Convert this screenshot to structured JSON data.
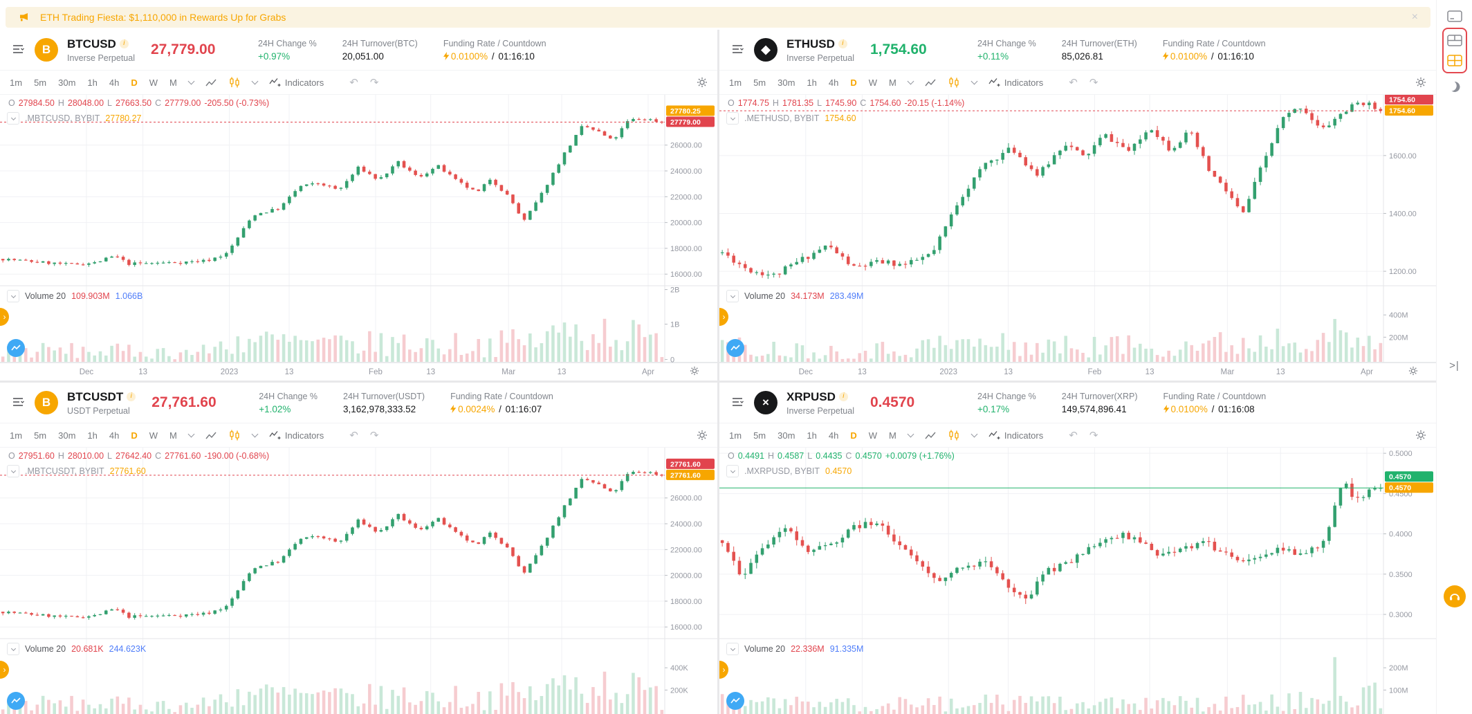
{
  "banner": {
    "text": "ETH Trading Fiesta: $1,110,000 in Rewards Up for Grabs",
    "close_glyph": "×"
  },
  "toolbar": {
    "timeframes": [
      "1m",
      "5m",
      "30m",
      "1h",
      "4h",
      "D",
      "W",
      "M"
    ],
    "active_index": 5,
    "indicators_label": "Indicators"
  },
  "ohlc_keys": {
    "o": "O",
    "h": "H",
    "l": "L",
    "c": "C"
  },
  "icons": {
    "undo": "↶",
    "redo": "↷",
    "collapse_right": ">|",
    "tab_arrow": "›"
  },
  "info_glyph": "i",
  "colors": {
    "red": "#e1444d",
    "green": "#20b26c",
    "orange": "#f7a600",
    "blue": "#4f7df9",
    "candle_up": "#33a06f",
    "candle_down": "#e4514f",
    "vol_up": "#c9e8d8",
    "vol_down": "#f6ccd0",
    "axis_text": "#9598a1",
    "grid": "#f0f1f4"
  },
  "charts": [
    {
      "symbol": "BTCUSD",
      "contract_type": "Inverse Perpetual",
      "coin_glyph": "B",
      "coin_bg": "#f7a600",
      "price": "27,779.00",
      "price_color": "red",
      "stats": {
        "change_label": "24H Change %",
        "change_value": "+0.97%",
        "turnover_label": "24H Turnover(BTC)",
        "turnover_value": "20,051.00",
        "funding_label": "Funding Rate / Countdown",
        "funding_value": "0.0100%",
        "countdown": "01:16:10"
      },
      "ohlc": {
        "o": "27984.50",
        "h": "28048.00",
        "l": "27663.50",
        "c": "27779.00",
        "change": "-205.50 (-0.73%)",
        "color": "red"
      },
      "series_symbol": ".MBTCUSD, BYBIT",
      "series_value": "27780.27",
      "volume": {
        "label": "Volume 20",
        "v1": "109.903M",
        "v2": "1.066B"
      },
      "price_axis": {
        "min": 15100,
        "max": 29900,
        "ticks": [
          {
            "v": 26000,
            "t": "26000.00"
          },
          {
            "v": 24000,
            "t": "24000.00"
          },
          {
            "v": 22000,
            "t": "22000.00"
          },
          {
            "v": 20000,
            "t": "20000.00"
          },
          {
            "v": 18000,
            "t": "18000.00"
          },
          {
            "v": 16000,
            "t": "16000.00"
          }
        ]
      },
      "volume_axis": [
        {
          "t": "2B",
          "f": 0.95
        },
        {
          "t": "1B",
          "f": 0.5
        },
        {
          "t": "0",
          "f": 0.04
        }
      ],
      "current_line": {
        "price": 27779,
        "color": "red",
        "dash": true
      },
      "tags": [
        {
          "text": "27780.25",
          "color": "orange"
        },
        {
          "text": "27779.00",
          "color": "red"
        }
      ],
      "time_ticks": [
        0.13,
        0.215,
        0.345,
        0.435,
        0.565,
        0.648,
        0.765,
        0.845,
        0.975
      ],
      "time_labels": [
        "Dec",
        "13",
        "2023",
        "13",
        "Feb",
        "13",
        "Mar",
        "13",
        "Apr"
      ],
      "series": {
        "seed": 7,
        "count": 116,
        "vol": 260,
        "wick": 170,
        "anchors": [
          [
            0,
            17180
          ],
          [
            0.05,
            16950
          ],
          [
            0.1,
            16740
          ],
          [
            0.14,
            16880
          ],
          [
            0.17,
            17420
          ],
          [
            0.19,
            16800
          ],
          [
            0.23,
            16860
          ],
          [
            0.27,
            16920
          ],
          [
            0.31,
            17050
          ],
          [
            0.34,
            17600
          ],
          [
            0.38,
            20600
          ],
          [
            0.42,
            21100
          ],
          [
            0.45,
            22800
          ],
          [
            0.48,
            23050
          ],
          [
            0.51,
            22500
          ],
          [
            0.54,
            24280
          ],
          [
            0.57,
            23280
          ],
          [
            0.6,
            24650
          ],
          [
            0.63,
            23480
          ],
          [
            0.66,
            24380
          ],
          [
            0.69,
            23150
          ],
          [
            0.72,
            22280
          ],
          [
            0.74,
            23420
          ],
          [
            0.77,
            21850
          ],
          [
            0.79,
            20050
          ],
          [
            0.815,
            22000
          ],
          [
            0.85,
            25200
          ],
          [
            0.88,
            27500
          ],
          [
            0.905,
            27000
          ],
          [
            0.925,
            26300
          ],
          [
            0.95,
            27950
          ],
          [
            0.975,
            28050
          ],
          [
            1,
            27780
          ]
        ],
        "vol_profile": [
          [
            0,
            0.35
          ],
          [
            0.3,
            0.28
          ],
          [
            0.36,
            0.65
          ],
          [
            0.5,
            0.5
          ],
          [
            0.62,
            0.55
          ],
          [
            0.72,
            0.5
          ],
          [
            0.8,
            0.6
          ],
          [
            0.88,
            1
          ],
          [
            0.94,
            0.85
          ],
          [
            1,
            0.5
          ]
        ]
      }
    },
    {
      "symbol": "ETHUSD",
      "contract_type": "Inverse Perpetual",
      "coin_glyph": "◆",
      "coin_bg": "#17181a",
      "price": "1,754.60",
      "price_color": "green",
      "stats": {
        "change_label": "24H Change %",
        "change_value": "+0.11%",
        "turnover_label": "24H Turnover(ETH)",
        "turnover_value": "85,026.81",
        "funding_label": "Funding Rate / Countdown",
        "funding_value": "0.0100%",
        "countdown": "01:16:10"
      },
      "ohlc": {
        "o": "1774.75",
        "h": "1781.35",
        "l": "1745.90",
        "c": "1754.60",
        "change": "-20.15 (-1.14%)",
        "color": "red"
      },
      "series_symbol": ".METHUSD, BYBIT",
      "series_value": "1754.60",
      "volume": {
        "label": "Volume 20",
        "v1": "34.173M",
        "v2": "283.49M"
      },
      "price_axis": {
        "min": 1150,
        "max": 1810,
        "ticks": [
          {
            "v": 1600,
            "t": "1600.00"
          },
          {
            "v": 1400,
            "t": "1400.00"
          },
          {
            "v": 1200,
            "t": "1200.00"
          }
        ]
      },
      "volume_axis": [
        {
          "t": "400M",
          "f": 0.62
        },
        {
          "t": "200M",
          "f": 0.33
        }
      ],
      "current_line": {
        "price": 1754.6,
        "color": "red",
        "dash": true
      },
      "tags": [
        {
          "text": "1754.60",
          "color": "red"
        },
        {
          "text": "1754.60",
          "color": "orange"
        }
      ],
      "time_ticks": [
        0.13,
        0.215,
        0.345,
        0.435,
        0.565,
        0.648,
        0.765,
        0.845,
        0.975
      ],
      "time_labels": [
        "Dec",
        "13",
        "2023",
        "13",
        "Feb",
        "13",
        "Mar",
        "13",
        "Apr"
      ],
      "series": {
        "seed": 11,
        "count": 116,
        "vol": 24,
        "wick": 16,
        "anchors": [
          [
            0,
            1265
          ],
          [
            0.04,
            1205
          ],
          [
            0.08,
            1185
          ],
          [
            0.12,
            1240
          ],
          [
            0.16,
            1290
          ],
          [
            0.2,
            1212
          ],
          [
            0.24,
            1232
          ],
          [
            0.28,
            1222
          ],
          [
            0.32,
            1262
          ],
          [
            0.36,
            1450
          ],
          [
            0.4,
            1572
          ],
          [
            0.44,
            1625
          ],
          [
            0.48,
            1530
          ],
          [
            0.52,
            1645
          ],
          [
            0.55,
            1592
          ],
          [
            0.58,
            1672
          ],
          [
            0.62,
            1612
          ],
          [
            0.65,
            1702
          ],
          [
            0.68,
            1622
          ],
          [
            0.71,
            1682
          ],
          [
            0.74,
            1545
          ],
          [
            0.77,
            1465
          ],
          [
            0.79,
            1392
          ],
          [
            0.82,
            1565
          ],
          [
            0.85,
            1725
          ],
          [
            0.88,
            1772
          ],
          [
            0.91,
            1685
          ],
          [
            0.94,
            1745
          ],
          [
            0.97,
            1788
          ],
          [
            1,
            1754.6
          ]
        ],
        "vol_profile": [
          [
            0,
            0.45
          ],
          [
            0.2,
            0.3
          ],
          [
            0.36,
            0.55
          ],
          [
            0.5,
            0.45
          ],
          [
            0.65,
            0.5
          ],
          [
            0.8,
            0.55
          ],
          [
            0.88,
            1
          ],
          [
            0.94,
            0.7
          ],
          [
            1,
            0.4
          ]
        ]
      }
    },
    {
      "symbol": "BTCUSDT",
      "contract_type": "USDT Perpetual",
      "coin_glyph": "B",
      "coin_bg": "#f7a600",
      "price": "27,761.60",
      "price_color": "red",
      "stats": {
        "change_label": "24H Change %",
        "change_value": "+1.02%",
        "turnover_label": "24H Turnover(USDT)",
        "turnover_value": "3,162,978,333.52",
        "funding_label": "Funding Rate / Countdown",
        "funding_value": "0.0024%",
        "countdown": "01:16:07"
      },
      "ohlc": {
        "o": "27951.60",
        "h": "28010.00",
        "l": "27642.40",
        "c": "27761.60",
        "change": "-190.00 (-0.68%)",
        "color": "red"
      },
      "series_symbol": ".MBTCUSDT, BYBIT",
      "series_value": "27761.60",
      "volume": {
        "label": "Volume 20",
        "v1": "20.681K",
        "v2": "244.623K"
      },
      "price_axis": {
        "min": 15100,
        "max": 29900,
        "ticks": [
          {
            "v": 26000,
            "t": "26000.00"
          },
          {
            "v": 24000,
            "t": "24000.00"
          },
          {
            "v": 22000,
            "t": "22000.00"
          },
          {
            "v": 20000,
            "t": "20000.00"
          },
          {
            "v": 18000,
            "t": "18000.00"
          },
          {
            "v": 16000,
            "t": "16000.00"
          }
        ]
      },
      "volume_axis": [
        {
          "t": "400K",
          "f": 0.62
        },
        {
          "t": "200K",
          "f": 0.33
        }
      ],
      "current_line": {
        "price": 27761.6,
        "color": "red",
        "dash": true
      },
      "tags": [
        {
          "text": "27761.60",
          "color": "red"
        },
        {
          "text": "27761.60",
          "color": "orange"
        }
      ],
      "time_ticks": [
        0.13,
        0.215,
        0.345,
        0.435,
        0.565,
        0.648,
        0.765,
        0.845,
        0.975
      ],
      "time_labels": null,
      "series": {
        "seed": 7,
        "count": 116,
        "vol": 260,
        "wick": 170,
        "anchors": [
          [
            0,
            17180
          ],
          [
            0.05,
            16950
          ],
          [
            0.1,
            16740
          ],
          [
            0.14,
            16880
          ],
          [
            0.17,
            17420
          ],
          [
            0.19,
            16800
          ],
          [
            0.23,
            16860
          ],
          [
            0.27,
            16920
          ],
          [
            0.31,
            17050
          ],
          [
            0.34,
            17600
          ],
          [
            0.38,
            20600
          ],
          [
            0.42,
            21100
          ],
          [
            0.45,
            22800
          ],
          [
            0.48,
            23050
          ],
          [
            0.51,
            22500
          ],
          [
            0.54,
            24280
          ],
          [
            0.57,
            23280
          ],
          [
            0.6,
            24650
          ],
          [
            0.63,
            23480
          ],
          [
            0.66,
            24380
          ],
          [
            0.69,
            23150
          ],
          [
            0.72,
            22280
          ],
          [
            0.74,
            23420
          ],
          [
            0.77,
            21850
          ],
          [
            0.79,
            20050
          ],
          [
            0.815,
            22000
          ],
          [
            0.85,
            25200
          ],
          [
            0.88,
            27500
          ],
          [
            0.905,
            27000
          ],
          [
            0.925,
            26300
          ],
          [
            0.95,
            27950
          ],
          [
            0.975,
            28050
          ],
          [
            1,
            27761.6
          ]
        ],
        "vol_profile": [
          [
            0,
            0.35
          ],
          [
            0.3,
            0.28
          ],
          [
            0.36,
            0.65
          ],
          [
            0.5,
            0.5
          ],
          [
            0.62,
            0.55
          ],
          [
            0.72,
            0.5
          ],
          [
            0.8,
            0.6
          ],
          [
            0.88,
            1
          ],
          [
            0.94,
            0.85
          ],
          [
            1,
            0.5
          ]
        ]
      }
    },
    {
      "symbol": "XRPUSD",
      "contract_type": "Inverse Perpetual",
      "coin_glyph": "×",
      "coin_bg": "#17181a",
      "price": "0.4570",
      "price_color": "red",
      "stats": {
        "change_label": "24H Change %",
        "change_value": "+0.17%",
        "turnover_label": "24H Turnover(XRP)",
        "turnover_value": "149,574,896.41",
        "funding_label": "Funding Rate / Countdown",
        "funding_value": "0.0100%",
        "countdown": "01:16:08"
      },
      "ohlc": {
        "o": "0.4491",
        "h": "0.4587",
        "l": "0.4435",
        "c": "0.4570",
        "change": "+0.0079 (+1.76%)",
        "color": "green"
      },
      "series_symbol": ".MXRPUSD, BYBIT",
      "series_value": "0.4570",
      "volume": {
        "label": "Volume 20",
        "v1": "22.336M",
        "v2": "91.335M"
      },
      "price_axis": {
        "min": 0.27,
        "max": 0.507,
        "ticks": [
          {
            "v": 0.5,
            "t": "0.5000"
          },
          {
            "v": 0.45,
            "t": "0.4500"
          },
          {
            "v": 0.4,
            "t": "0.4000"
          },
          {
            "v": 0.35,
            "t": "0.3500"
          },
          {
            "v": 0.3,
            "t": "0.3000"
          }
        ]
      },
      "volume_axis": [
        {
          "t": "200M",
          "f": 0.62
        },
        {
          "t": "100M",
          "f": 0.33
        }
      ],
      "current_line": {
        "price": 0.457,
        "color": "green",
        "dash": false
      },
      "tags": [
        {
          "text": "0.4570",
          "color": "green"
        },
        {
          "text": "0.4570",
          "color": "orange"
        }
      ],
      "time_ticks": [
        0.13,
        0.215,
        0.345,
        0.435,
        0.565,
        0.648,
        0.765,
        0.845,
        0.975
      ],
      "time_labels": null,
      "series": {
        "seed": 23,
        "count": 116,
        "vol": 0.009,
        "wick": 0.007,
        "anchors": [
          [
            0,
            0.392
          ],
          [
            0.03,
            0.348
          ],
          [
            0.06,
            0.384
          ],
          [
            0.1,
            0.406
          ],
          [
            0.13,
            0.374
          ],
          [
            0.17,
            0.391
          ],
          [
            0.2,
            0.409
          ],
          [
            0.24,
            0.416
          ],
          [
            0.27,
            0.384
          ],
          [
            0.3,
            0.361
          ],
          [
            0.33,
            0.344
          ],
          [
            0.36,
            0.356
          ],
          [
            0.4,
            0.369
          ],
          [
            0.43,
            0.34
          ],
          [
            0.46,
            0.316
          ],
          [
            0.49,
            0.353
          ],
          [
            0.52,
            0.361
          ],
          [
            0.55,
            0.377
          ],
          [
            0.58,
            0.393
          ],
          [
            0.61,
            0.399
          ],
          [
            0.64,
            0.386
          ],
          [
            0.67,
            0.373
          ],
          [
            0.7,
            0.381
          ],
          [
            0.73,
            0.391
          ],
          [
            0.76,
            0.378
          ],
          [
            0.79,
            0.369
          ],
          [
            0.82,
            0.375
          ],
          [
            0.85,
            0.381
          ],
          [
            0.88,
            0.376
          ],
          [
            0.91,
            0.386
          ],
          [
            0.93,
            0.43
          ],
          [
            0.945,
            0.468
          ],
          [
            0.96,
            0.441
          ],
          [
            0.98,
            0.452
          ],
          [
            1,
            0.457
          ]
        ],
        "vol_profile": [
          [
            0,
            0.4
          ],
          [
            0.2,
            0.3
          ],
          [
            0.4,
            0.35
          ],
          [
            0.6,
            0.3
          ],
          [
            0.8,
            0.35
          ],
          [
            0.9,
            0.4
          ],
          [
            0.93,
            1
          ],
          [
            0.96,
            0.8
          ],
          [
            1,
            0.5
          ]
        ]
      }
    }
  ]
}
